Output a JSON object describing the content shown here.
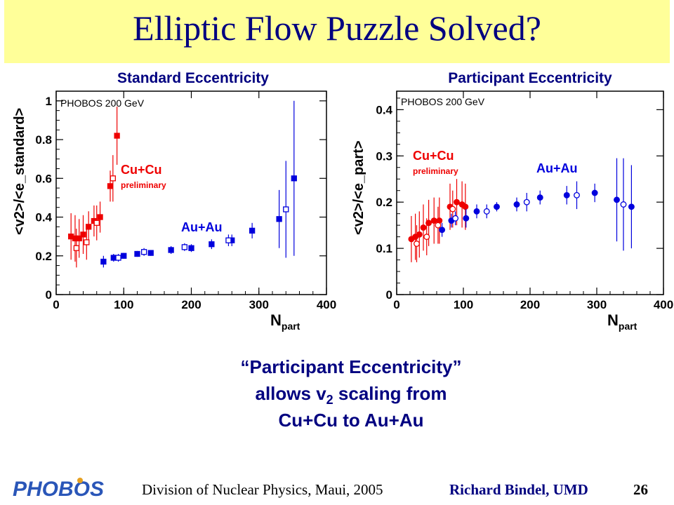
{
  "slide": {
    "title": "Elliptic Flow Puzzle Solved?",
    "caption_line1": "“Participant Eccentricity”",
    "caption_line2_pre": "allows v",
    "caption_line2_sub": "2",
    "caption_line2_post": " scaling from",
    "caption_line3": "Cu+Cu to Au+Au",
    "footer_left": "Division of Nuclear Physics, Maui, 2005",
    "footer_right": "Richard Bindel, UMD",
    "page_number": "26",
    "logo_text": "PHOBOS"
  },
  "colors": {
    "title_bg": "#ffff99",
    "title_text": "#000080",
    "cu": "#ee0000",
    "au": "#0000dd"
  },
  "chart_data": [
    {
      "type": "scatter",
      "title": "Standard Eccentricity",
      "xlabel": "N_part",
      "ylabel": "<v2>/<e_standard>",
      "xlim": [
        0,
        400
      ],
      "ylim": [
        0,
        1.05
      ],
      "xticks": [
        0,
        100,
        200,
        300,
        400
      ],
      "yticks": [
        0,
        0.2,
        0.4,
        0.6,
        0.8,
        1
      ],
      "ytick_labels": [
        "0",
        "0.2",
        "0.4",
        "0.6",
        "0.8",
        "1"
      ],
      "annotation_experiment": "PHOBOS  200 GeV",
      "series": [
        {
          "name": "Cu+Cu",
          "sublabel": "preliminary",
          "color": "#ee0000",
          "points": [
            {
              "x": 22,
              "y": 0.3,
              "err": 0.12,
              "marker": "filled-square"
            },
            {
              "x": 28,
              "y": 0.29,
              "err": 0.12,
              "marker": "filled-square"
            },
            {
              "x": 34,
              "y": 0.29,
              "err": 0.1,
              "marker": "filled-square"
            },
            {
              "x": 40,
              "y": 0.31,
              "err": 0.1,
              "marker": "filled-square"
            },
            {
              "x": 48,
              "y": 0.35,
              "err": 0.08,
              "marker": "filled-square"
            },
            {
              "x": 56,
              "y": 0.38,
              "err": 0.08,
              "marker": "filled-square"
            },
            {
              "x": 65,
              "y": 0.4,
              "err": 0.08,
              "marker": "filled-square"
            },
            {
              "x": 80,
              "y": 0.56,
              "err": 0.08,
              "marker": "filled-square"
            },
            {
              "x": 90,
              "y": 0.82,
              "err": 0.15,
              "marker": "filled-square"
            },
            {
              "x": 30,
              "y": 0.24,
              "err": 0.1,
              "marker": "open-square"
            },
            {
              "x": 45,
              "y": 0.27,
              "err": 0.09,
              "marker": "open-square"
            },
            {
              "x": 60,
              "y": 0.37,
              "err": 0.09,
              "marker": "open-square"
            },
            {
              "x": 84,
              "y": 0.6,
              "err": 0.12,
              "marker": "open-square"
            }
          ]
        },
        {
          "name": "Au+Au",
          "sublabel": "",
          "color": "#0000dd",
          "points": [
            {
              "x": 70,
              "y": 0.17,
              "err": 0.03,
              "marker": "filled-square"
            },
            {
              "x": 85,
              "y": 0.19,
              "err": 0.02,
              "marker": "filled-square"
            },
            {
              "x": 100,
              "y": 0.2,
              "err": 0.015,
              "marker": "filled-square"
            },
            {
              "x": 120,
              "y": 0.21,
              "err": 0.015,
              "marker": "filled-square"
            },
            {
              "x": 140,
              "y": 0.215,
              "err": 0.015,
              "marker": "filled-square"
            },
            {
              "x": 170,
              "y": 0.23,
              "err": 0.02,
              "marker": "filled-square"
            },
            {
              "x": 200,
              "y": 0.24,
              "err": 0.02,
              "marker": "filled-square"
            },
            {
              "x": 230,
              "y": 0.26,
              "err": 0.025,
              "marker": "filled-square"
            },
            {
              "x": 260,
              "y": 0.28,
              "err": 0.03,
              "marker": "filled-square"
            },
            {
              "x": 290,
              "y": 0.33,
              "err": 0.04,
              "marker": "filled-square"
            },
            {
              "x": 330,
              "y": 0.39,
              "err": 0.15,
              "marker": "filled-square"
            },
            {
              "x": 352,
              "y": 0.6,
              "err": 0.4,
              "marker": "filled-square"
            },
            {
              "x": 92,
              "y": 0.19,
              "err": 0.02,
              "marker": "open-square"
            },
            {
              "x": 130,
              "y": 0.22,
              "err": 0.02,
              "marker": "open-square"
            },
            {
              "x": 190,
              "y": 0.245,
              "err": 0.02,
              "marker": "open-square"
            },
            {
              "x": 255,
              "y": 0.28,
              "err": 0.03,
              "marker": "open-square"
            },
            {
              "x": 340,
              "y": 0.44,
              "err": 0.25,
              "marker": "open-square"
            }
          ]
        }
      ]
    },
    {
      "type": "scatter",
      "title": "Participant Eccentricity",
      "xlabel": "N_part",
      "ylabel": "<v2>/<e_part>",
      "xlim": [
        0,
        400
      ],
      "ylim": [
        0,
        0.44
      ],
      "xticks": [
        0,
        100,
        200,
        300,
        400
      ],
      "yticks": [
        0,
        0.1,
        0.2,
        0.3,
        0.4
      ],
      "ytick_labels": [
        "0",
        "0.1",
        "0.2",
        "0.3",
        "0.4"
      ],
      "annotation_experiment": "PHOBOS  200 GeV",
      "series": [
        {
          "name": "Cu+Cu",
          "sublabel": "preliminary",
          "color": "#ee0000",
          "points": [
            {
              "x": 22,
              "y": 0.12,
              "err": 0.05,
              "marker": "filled-circle"
            },
            {
              "x": 28,
              "y": 0.125,
              "err": 0.05,
              "marker": "filled-circle"
            },
            {
              "x": 34,
              "y": 0.13,
              "err": 0.05,
              "marker": "filled-circle"
            },
            {
              "x": 40,
              "y": 0.145,
              "err": 0.05,
              "marker": "filled-circle"
            },
            {
              "x": 48,
              "y": 0.155,
              "err": 0.05,
              "marker": "filled-circle"
            },
            {
              "x": 56,
              "y": 0.16,
              "err": 0.05,
              "marker": "filled-circle"
            },
            {
              "x": 64,
              "y": 0.16,
              "err": 0.05,
              "marker": "filled-circle"
            },
            {
              "x": 80,
              "y": 0.19,
              "err": 0.05,
              "marker": "filled-circle"
            },
            {
              "x": 90,
              "y": 0.2,
              "err": 0.05,
              "marker": "filled-circle"
            },
            {
              "x": 98,
              "y": 0.195,
              "err": 0.05,
              "marker": "filled-circle"
            },
            {
              "x": 103,
              "y": 0.19,
              "err": 0.05,
              "marker": "filled-circle"
            },
            {
              "x": 30,
              "y": 0.11,
              "err": 0.04,
              "marker": "open-circle"
            },
            {
              "x": 45,
              "y": 0.125,
              "err": 0.04,
              "marker": "open-circle"
            },
            {
              "x": 62,
              "y": 0.15,
              "err": 0.04,
              "marker": "open-circle"
            },
            {
              "x": 84,
              "y": 0.185,
              "err": 0.04,
              "marker": "open-circle"
            }
          ]
        },
        {
          "name": "Au+Au",
          "sublabel": "",
          "color": "#0000dd",
          "points": [
            {
              "x": 68,
              "y": 0.14,
              "err": 0.015,
              "marker": "filled-circle"
            },
            {
              "x": 82,
              "y": 0.16,
              "err": 0.015,
              "marker": "filled-circle"
            },
            {
              "x": 104,
              "y": 0.165,
              "err": 0.02,
              "marker": "filled-circle"
            },
            {
              "x": 120,
              "y": 0.18,
              "err": 0.015,
              "marker": "filled-circle"
            },
            {
              "x": 150,
              "y": 0.19,
              "err": 0.01,
              "marker": "filled-circle"
            },
            {
              "x": 180,
              "y": 0.195,
              "err": 0.015,
              "marker": "filled-circle"
            },
            {
              "x": 215,
              "y": 0.21,
              "err": 0.015,
              "marker": "filled-circle"
            },
            {
              "x": 255,
              "y": 0.215,
              "err": 0.02,
              "marker": "filled-circle"
            },
            {
              "x": 297,
              "y": 0.22,
              "err": 0.02,
              "marker": "filled-circle"
            },
            {
              "x": 330,
              "y": 0.205,
              "err": 0.09,
              "marker": "filled-circle"
            },
            {
              "x": 352,
              "y": 0.19,
              "err": 0.09,
              "marker": "filled-circle"
            },
            {
              "x": 88,
              "y": 0.165,
              "err": 0.015,
              "marker": "open-circle"
            },
            {
              "x": 135,
              "y": 0.18,
              "err": 0.015,
              "marker": "open-circle"
            },
            {
              "x": 195,
              "y": 0.2,
              "err": 0.02,
              "marker": "open-circle"
            },
            {
              "x": 270,
              "y": 0.215,
              "err": 0.03,
              "marker": "open-circle"
            },
            {
              "x": 340,
              "y": 0.195,
              "err": 0.1,
              "marker": "open-circle"
            }
          ]
        }
      ]
    }
  ]
}
